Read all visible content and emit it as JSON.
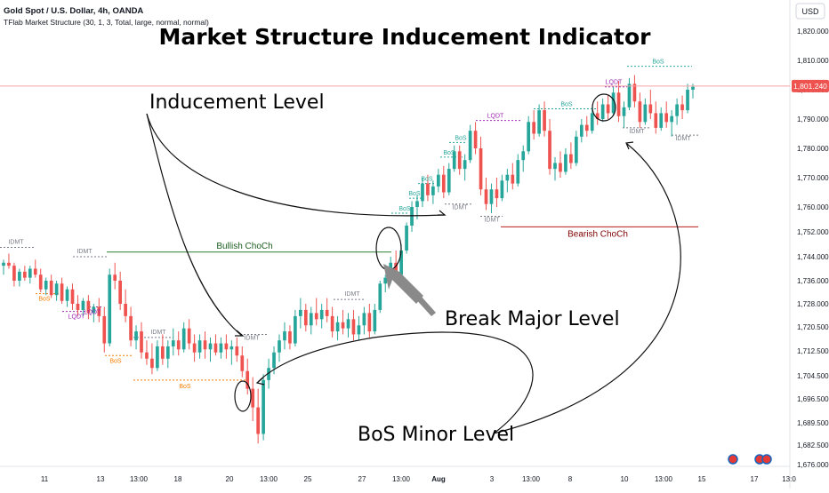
{
  "header": {
    "symbol_line": "Gold Spot / U.S. Dollar, 4h, OANDA",
    "indicator_line": "TFlab Market Structure (30, 1, 3, Total, large, normal, normal)"
  },
  "currency_button": "USD",
  "chart_data": {
    "type": "candlestick",
    "title": "Market Structure Inducement Indicator",
    "ylim": [
      1674,
      1825
    ],
    "y_ticks": [
      "1,820.000",
      "1,810.000",
      "1,800.000",
      "1,790.000",
      "1,780.000",
      "1,770.000",
      "1,760.000",
      "1,752.000",
      "1,744.000",
      "1,736.000",
      "1,728.000",
      "1,720.500",
      "1,712.500",
      "1,704.500",
      "1,696.500",
      "1,689.500",
      "1,682.500",
      "1,676.000"
    ],
    "y_tick_values": [
      1820,
      1810,
      1800,
      1790,
      1780,
      1770,
      1760,
      1752,
      1744,
      1736,
      1728,
      1720.5,
      1712.5,
      1704.5,
      1696.5,
      1689.5,
      1682.5,
      1676
    ],
    "x_ticks": [
      "11",
      "13",
      "13:00",
      "18",
      "20",
      "13:00",
      "25",
      "27",
      "13:00",
      "Aug",
      "3",
      "13:00",
      "8",
      "10",
      "13:00",
      "15",
      "17",
      "13:0"
    ],
    "last_price": "1,801.240",
    "colors": {
      "up": "#26a69a",
      "down": "#ef5350",
      "price_line": "#f5a3a8",
      "choch_bull": "#2e7d32",
      "choch_bear": "#b71c1c",
      "idmt": "#787b86",
      "bos_down": "#f57c00",
      "bos_up": "#26a69a",
      "lqdt": "#9c27b0"
    },
    "candles": [
      [
        1741,
        1743,
        1738,
        1742
      ],
      [
        1742,
        1745,
        1740,
        1741
      ],
      [
        1741,
        1742,
        1734,
        1736
      ],
      [
        1736,
        1740,
        1734,
        1739
      ],
      [
        1739,
        1741,
        1736,
        1737
      ],
      [
        1737,
        1741,
        1735,
        1740
      ],
      [
        1740,
        1743,
        1737,
        1738
      ],
      [
        1738,
        1740,
        1732,
        1733
      ],
      [
        1733,
        1737,
        1731,
        1736
      ],
      [
        1736,
        1738,
        1730,
        1731
      ],
      [
        1731,
        1736,
        1729,
        1735
      ],
      [
        1735,
        1737,
        1728,
        1729
      ],
      [
        1729,
        1734,
        1727,
        1733
      ],
      [
        1733,
        1735,
        1726,
        1728
      ],
      [
        1728,
        1731,
        1724,
        1726
      ],
      [
        1726,
        1730,
        1724,
        1729
      ],
      [
        1729,
        1731,
        1723,
        1725
      ],
      [
        1725,
        1728,
        1722,
        1727
      ],
      [
        1727,
        1730,
        1722,
        1724
      ],
      [
        1724,
        1727,
        1712,
        1715
      ],
      [
        1715,
        1740,
        1714,
        1738
      ],
      [
        1738,
        1742,
        1733,
        1736
      ],
      [
        1736,
        1739,
        1726,
        1728
      ],
      [
        1728,
        1733,
        1722,
        1724
      ],
      [
        1724,
        1727,
        1714,
        1716
      ],
      [
        1716,
        1721,
        1713,
        1719
      ],
      [
        1719,
        1722,
        1710,
        1712
      ],
      [
        1712,
        1716,
        1708,
        1710
      ],
      [
        1710,
        1715,
        1705,
        1707
      ],
      [
        1707,
        1716,
        1706,
        1714
      ],
      [
        1714,
        1718,
        1708,
        1710
      ],
      [
        1710,
        1716,
        1707,
        1714
      ],
      [
        1714,
        1720,
        1711,
        1716
      ],
      [
        1716,
        1719,
        1711,
        1713
      ],
      [
        1713,
        1722,
        1712,
        1720
      ],
      [
        1720,
        1723,
        1713,
        1715
      ],
      [
        1715,
        1718,
        1709,
        1712
      ],
      [
        1712,
        1718,
        1710,
        1716
      ],
      [
        1716,
        1719,
        1710,
        1713
      ],
      [
        1713,
        1717,
        1709,
        1715
      ],
      [
        1715,
        1718,
        1711,
        1712
      ],
      [
        1712,
        1717,
        1710,
        1715
      ],
      [
        1715,
        1718,
        1710,
        1713
      ],
      [
        1713,
        1716,
        1708,
        1714
      ],
      [
        1714,
        1717,
        1709,
        1711
      ],
      [
        1711,
        1714,
        1704,
        1706
      ],
      [
        1706,
        1710,
        1698,
        1700
      ],
      [
        1700,
        1704,
        1690,
        1694
      ],
      [
        1694,
        1700,
        1683,
        1686
      ],
      [
        1686,
        1705,
        1684,
        1703
      ],
      [
        1703,
        1710,
        1700,
        1707
      ],
      [
        1707,
        1714,
        1705,
        1712
      ],
      [
        1712,
        1718,
        1709,
        1716
      ],
      [
        1716,
        1722,
        1713,
        1719
      ],
      [
        1719,
        1721,
        1713,
        1715
      ],
      [
        1715,
        1726,
        1714,
        1724
      ],
      [
        1724,
        1730,
        1720,
        1726
      ],
      [
        1726,
        1728,
        1719,
        1721
      ],
      [
        1721,
        1727,
        1718,
        1725
      ],
      [
        1725,
        1730,
        1721,
        1723
      ],
      [
        1723,
        1728,
        1720,
        1726
      ],
      [
        1726,
        1730,
        1722,
        1724
      ],
      [
        1724,
        1727,
        1717,
        1719
      ],
      [
        1719,
        1724,
        1716,
        1722
      ],
      [
        1722,
        1726,
        1718,
        1720
      ],
      [
        1720,
        1725,
        1717,
        1723
      ],
      [
        1723,
        1726,
        1716,
        1718
      ],
      [
        1718,
        1724,
        1716,
        1721
      ],
      [
        1721,
        1727,
        1718,
        1725
      ],
      [
        1725,
        1728,
        1717,
        1719
      ],
      [
        1719,
        1728,
        1718,
        1726
      ],
      [
        1726,
        1736,
        1725,
        1735
      ],
      [
        1735,
        1738,
        1732,
        1737
      ],
      [
        1737,
        1744,
        1735,
        1742
      ],
      [
        1742,
        1746,
        1736,
        1738
      ],
      [
        1738,
        1748,
        1737,
        1746
      ],
      [
        1746,
        1755,
        1745,
        1754
      ],
      [
        1754,
        1762,
        1752,
        1760
      ],
      [
        1760,
        1764,
        1756,
        1762
      ],
      [
        1762,
        1770,
        1760,
        1768
      ],
      [
        1768,
        1771,
        1762,
        1764
      ],
      [
        1764,
        1769,
        1761,
        1767
      ],
      [
        1767,
        1773,
        1765,
        1771
      ],
      [
        1771,
        1774,
        1763,
        1765
      ],
      [
        1765,
        1775,
        1764,
        1773
      ],
      [
        1773,
        1781,
        1772,
        1779
      ],
      [
        1779,
        1781,
        1771,
        1773
      ],
      [
        1773,
        1778,
        1769,
        1776
      ],
      [
        1776,
        1788,
        1775,
        1786
      ],
      [
        1786,
        1789,
        1778,
        1780
      ],
      [
        1780,
        1784,
        1764,
        1766
      ],
      [
        1766,
        1770,
        1759,
        1761
      ],
      [
        1761,
        1768,
        1758,
        1766
      ],
      [
        1766,
        1770,
        1760,
        1763
      ],
      [
        1763,
        1771,
        1762,
        1769
      ],
      [
        1769,
        1773,
        1765,
        1771
      ],
      [
        1771,
        1775,
        1766,
        1768
      ],
      [
        1768,
        1778,
        1767,
        1776
      ],
      [
        1776,
        1781,
        1772,
        1779
      ],
      [
        1779,
        1791,
        1778,
        1789
      ],
      [
        1789,
        1793,
        1783,
        1785
      ],
      [
        1785,
        1795,
        1784,
        1793
      ],
      [
        1793,
        1796,
        1784,
        1786
      ],
      [
        1786,
        1790,
        1771,
        1773
      ],
      [
        1773,
        1777,
        1769,
        1775
      ],
      [
        1775,
        1779,
        1770,
        1772
      ],
      [
        1772,
        1780,
        1771,
        1778
      ],
      [
        1778,
        1782,
        1773,
        1775
      ],
      [
        1775,
        1786,
        1774,
        1784
      ],
      [
        1784,
        1790,
        1782,
        1788
      ],
      [
        1788,
        1791,
        1784,
        1786
      ],
      [
        1786,
        1794,
        1785,
        1792
      ],
      [
        1792,
        1796,
        1788,
        1790
      ],
      [
        1790,
        1797,
        1789,
        1795
      ],
      [
        1795,
        1798,
        1790,
        1792
      ],
      [
        1792,
        1801,
        1791,
        1799
      ],
      [
        1799,
        1803,
        1789,
        1791
      ],
      [
        1791,
        1796,
        1787,
        1794
      ],
      [
        1794,
        1804,
        1793,
        1802
      ],
      [
        1802,
        1805,
        1794,
        1796
      ],
      [
        1796,
        1799,
        1787,
        1789
      ],
      [
        1789,
        1797,
        1788,
        1795
      ],
      [
        1795,
        1800,
        1790,
        1792
      ],
      [
        1792,
        1796,
        1785,
        1787
      ],
      [
        1787,
        1794,
        1786,
        1792
      ],
      [
        1792,
        1796,
        1787,
        1789
      ],
      [
        1789,
        1793,
        1784,
        1791
      ],
      [
        1791,
        1797,
        1788,
        1795
      ],
      [
        1795,
        1798,
        1790,
        1793
      ],
      [
        1793,
        1802,
        1792,
        1800
      ],
      [
        1800,
        1802,
        1797,
        1801
      ]
    ],
    "annotations": {
      "bullish_choch": "Bullish ChoCh",
      "bearish_choch": "Bearish ChoCh",
      "idmt": "IDMT",
      "bos": "BoS",
      "lqdt": "LQDT",
      "inducement_level": "Inducement Level",
      "break_major_level": "Break Major Level",
      "bos_minor_level": "BoS Minor Level"
    }
  }
}
